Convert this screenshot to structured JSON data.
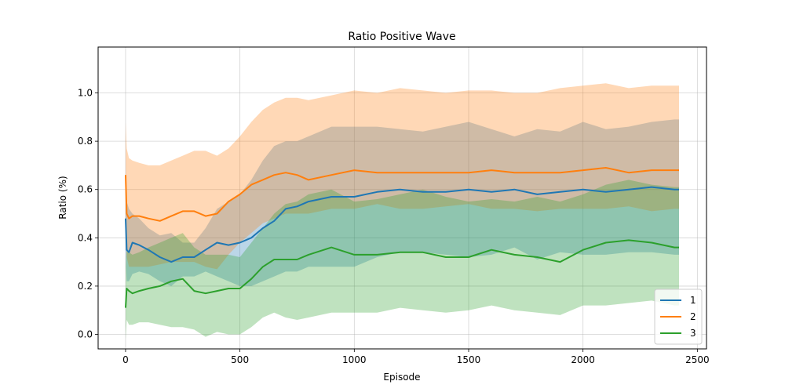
{
  "chart_data": {
    "type": "line",
    "title": "Ratio Positive Wave",
    "xlabel": "Episode",
    "ylabel": "Ratio (%)",
    "xlim": [
      -120,
      2540
    ],
    "ylim": [
      -0.06,
      1.19
    ],
    "xticks": [
      0,
      500,
      1000,
      1500,
      2000,
      2500
    ],
    "yticks": [
      0.0,
      0.2,
      0.4,
      0.6,
      0.8,
      1.0
    ],
    "xtick_labels": [
      "0",
      "500",
      "1000",
      "1500",
      "2000",
      "2500"
    ],
    "ytick_labels": [
      "0.0",
      "0.2",
      "0.4",
      "0.6",
      "0.8",
      "1.0"
    ],
    "grid": true,
    "legend_position": "lower-right",
    "series": [
      {
        "name": "1",
        "color": "#1f77b4",
        "x": [
          0,
          5,
          15,
          30,
          60,
          100,
          150,
          200,
          250,
          300,
          350,
          400,
          450,
          500,
          550,
          600,
          650,
          700,
          750,
          800,
          900,
          1000,
          1100,
          1200,
          1300,
          1400,
          1500,
          1600,
          1700,
          1800,
          1900,
          2000,
          2100,
          2200,
          2300,
          2400,
          2420
        ],
        "y": [
          0.48,
          0.35,
          0.34,
          0.38,
          0.37,
          0.35,
          0.32,
          0.3,
          0.32,
          0.32,
          0.35,
          0.38,
          0.37,
          0.38,
          0.4,
          0.44,
          0.47,
          0.52,
          0.53,
          0.55,
          0.57,
          0.57,
          0.59,
          0.6,
          0.59,
          0.59,
          0.6,
          0.59,
          0.6,
          0.58,
          0.59,
          0.6,
          0.59,
          0.6,
          0.61,
          0.6,
          0.6
        ],
        "band_upper": [
          0.6,
          0.55,
          0.52,
          0.5,
          0.48,
          0.44,
          0.41,
          0.42,
          0.38,
          0.38,
          0.44,
          0.52,
          0.55,
          0.58,
          0.64,
          0.72,
          0.78,
          0.8,
          0.8,
          0.82,
          0.86,
          0.86,
          0.86,
          0.85,
          0.84,
          0.86,
          0.88,
          0.85,
          0.82,
          0.85,
          0.84,
          0.88,
          0.85,
          0.86,
          0.88,
          0.89,
          0.89
        ],
        "band_lower": [
          0.32,
          0.22,
          0.22,
          0.25,
          0.26,
          0.25,
          0.22,
          0.2,
          0.24,
          0.24,
          0.26,
          0.24,
          0.22,
          0.2,
          0.2,
          0.22,
          0.24,
          0.26,
          0.26,
          0.28,
          0.28,
          0.28,
          0.32,
          0.34,
          0.34,
          0.33,
          0.32,
          0.33,
          0.36,
          0.31,
          0.34,
          0.33,
          0.33,
          0.34,
          0.34,
          0.33,
          0.33
        ]
      },
      {
        "name": "2",
        "color": "#ff7f0e",
        "x": [
          0,
          5,
          15,
          30,
          60,
          100,
          150,
          200,
          250,
          300,
          350,
          400,
          450,
          500,
          550,
          600,
          650,
          700,
          750,
          800,
          900,
          1000,
          1100,
          1200,
          1300,
          1400,
          1500,
          1600,
          1700,
          1800,
          1900,
          2000,
          2100,
          2200,
          2300,
          2400,
          2420
        ],
        "y": [
          0.66,
          0.5,
          0.48,
          0.49,
          0.49,
          0.48,
          0.47,
          0.49,
          0.51,
          0.51,
          0.49,
          0.5,
          0.55,
          0.58,
          0.62,
          0.64,
          0.66,
          0.67,
          0.66,
          0.64,
          0.66,
          0.68,
          0.67,
          0.67,
          0.67,
          0.67,
          0.67,
          0.68,
          0.67,
          0.67,
          0.67,
          0.68,
          0.69,
          0.67,
          0.68,
          0.68,
          0.68
        ],
        "band_upper": [
          0.88,
          0.77,
          0.73,
          0.72,
          0.71,
          0.7,
          0.7,
          0.72,
          0.74,
          0.76,
          0.76,
          0.74,
          0.77,
          0.82,
          0.88,
          0.93,
          0.96,
          0.98,
          0.98,
          0.97,
          0.99,
          1.01,
          1.0,
          1.02,
          1.01,
          1.0,
          1.01,
          1.01,
          1.0,
          1.0,
          1.02,
          1.03,
          1.04,
          1.02,
          1.03,
          1.03,
          1.03
        ],
        "band_lower": [
          0.44,
          0.32,
          0.28,
          0.28,
          0.28,
          0.28,
          0.29,
          0.3,
          0.3,
          0.3,
          0.28,
          0.27,
          0.33,
          0.38,
          0.42,
          0.46,
          0.48,
          0.5,
          0.5,
          0.5,
          0.52,
          0.52,
          0.54,
          0.52,
          0.52,
          0.53,
          0.54,
          0.52,
          0.52,
          0.51,
          0.52,
          0.52,
          0.52,
          0.53,
          0.51,
          0.52,
          0.52
        ]
      },
      {
        "name": "3",
        "color": "#2ca02c",
        "x": [
          0,
          5,
          15,
          30,
          60,
          100,
          150,
          200,
          250,
          300,
          350,
          400,
          450,
          500,
          550,
          600,
          650,
          700,
          750,
          800,
          900,
          1000,
          1100,
          1200,
          1300,
          1400,
          1500,
          1600,
          1700,
          1800,
          1900,
          2000,
          2100,
          2200,
          2300,
          2400,
          2420
        ],
        "y": [
          0.11,
          0.19,
          0.18,
          0.17,
          0.18,
          0.19,
          0.2,
          0.22,
          0.23,
          0.18,
          0.17,
          0.18,
          0.19,
          0.19,
          0.23,
          0.28,
          0.31,
          0.31,
          0.31,
          0.33,
          0.36,
          0.33,
          0.33,
          0.34,
          0.34,
          0.32,
          0.32,
          0.35,
          0.33,
          0.32,
          0.3,
          0.35,
          0.38,
          0.39,
          0.38,
          0.36,
          0.36
        ],
        "band_upper": [
          0.28,
          0.35,
          0.34,
          0.33,
          0.34,
          0.36,
          0.38,
          0.4,
          0.42,
          0.36,
          0.33,
          0.33,
          0.33,
          0.32,
          0.38,
          0.44,
          0.5,
          0.54,
          0.55,
          0.58,
          0.6,
          0.55,
          0.56,
          0.58,
          0.6,
          0.57,
          0.55,
          0.56,
          0.55,
          0.57,
          0.55,
          0.58,
          0.62,
          0.64,
          0.62,
          0.61,
          0.61
        ],
        "band_lower": [
          -0.02,
          0.06,
          0.04,
          0.04,
          0.05,
          0.05,
          0.04,
          0.03,
          0.03,
          0.02,
          -0.01,
          0.01,
          0.0,
          0.0,
          0.03,
          0.07,
          0.09,
          0.07,
          0.06,
          0.07,
          0.09,
          0.09,
          0.09,
          0.11,
          0.1,
          0.09,
          0.1,
          0.12,
          0.1,
          0.09,
          0.08,
          0.12,
          0.12,
          0.13,
          0.14,
          0.12,
          0.12
        ]
      }
    ]
  }
}
